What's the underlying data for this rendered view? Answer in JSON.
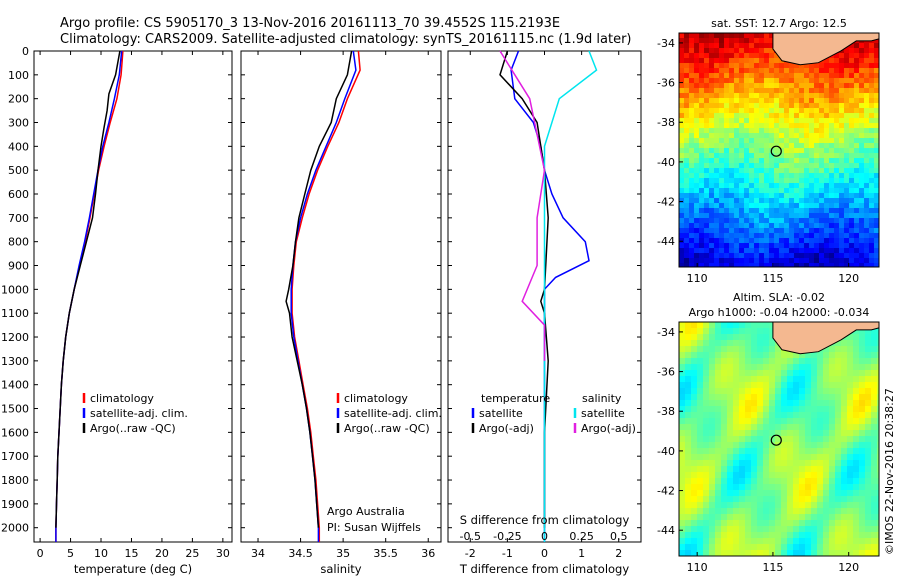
{
  "header": {
    "title_line1": "Argo profile: CS 5905170_3 13-Nov-2016 20161113_70 39.4552S 115.2193E",
    "title_line2": "Climatology: CARS2009. Satellite-adjusted climatology: synTS_20161115.nc (1.9d later)"
  },
  "credits": {
    "institution": "Argo Australia",
    "pi": "PI: Susan Wijffels",
    "stamp": "©IMOS 22-Nov-2016 20:38:27"
  },
  "colors": {
    "climatology": "#ff0000",
    "satellite": "#0000ff",
    "argo": "#000000",
    "sal_satellite": "#00e5ee",
    "sal_argo": "#e020e0",
    "land": "#f4b890"
  },
  "chart_data": [
    {
      "id": "temperature",
      "type": "line",
      "xlabel": "temperature (deg C)",
      "ylabel": "",
      "xlim": [
        -1,
        31.5
      ],
      "ylim": [
        2060,
        0
      ],
      "xticks": [
        0,
        5,
        10,
        15,
        20,
        25,
        30
      ],
      "yticks": [
        0,
        100,
        200,
        300,
        400,
        500,
        600,
        700,
        800,
        900,
        1000,
        1100,
        1200,
        1300,
        1400,
        1500,
        1600,
        1700,
        1800,
        1900,
        2000
      ],
      "legend": [
        "climatology",
        "satellite-adj. clim.",
        "Argo(..raw -QC)"
      ],
      "series": [
        {
          "name": "climatology",
          "color": "#ff0000",
          "points": [
            [
              13.6,
              0
            ],
            [
              13.3,
              100
            ],
            [
              12.6,
              200
            ],
            [
              11.5,
              300
            ],
            [
              10.5,
              400
            ],
            [
              9.6,
              500
            ],
            [
              8.9,
              600
            ],
            [
              8.2,
              700
            ],
            [
              7.4,
              800
            ],
            [
              6.5,
              900
            ],
            [
              5.6,
              1000
            ],
            [
              4.8,
              1100
            ],
            [
              4.2,
              1200
            ],
            [
              3.8,
              1300
            ],
            [
              3.5,
              1400
            ],
            [
              3.3,
              1500
            ],
            [
              3.1,
              1600
            ],
            [
              2.9,
              1700
            ],
            [
              2.8,
              1800
            ],
            [
              2.7,
              1900
            ],
            [
              2.6,
              2000
            ],
            [
              2.6,
              2060
            ]
          ]
        },
        {
          "name": "satellite-adj. clim.",
          "color": "#0000ff",
          "points": [
            [
              13.4,
              0
            ],
            [
              13.0,
              100
            ],
            [
              12.2,
              200
            ],
            [
              11.3,
              300
            ],
            [
              10.3,
              400
            ],
            [
              9.5,
              500
            ],
            [
              8.8,
              600
            ],
            [
              8.1,
              700
            ],
            [
              7.3,
              800
            ],
            [
              6.4,
              900
            ],
            [
              5.6,
              1000
            ],
            [
              4.8,
              1100
            ],
            [
              4.2,
              1200
            ],
            [
              3.8,
              1300
            ],
            [
              3.5,
              1400
            ],
            [
              3.3,
              1500
            ],
            [
              3.1,
              1600
            ],
            [
              2.9,
              1700
            ],
            [
              2.8,
              1800
            ],
            [
              2.7,
              1900
            ],
            [
              2.6,
              2000
            ],
            [
              2.6,
              2060
            ]
          ]
        },
        {
          "name": "Argo(..raw -QC)",
          "color": "#000000",
          "points": [
            [
              13.1,
              0
            ],
            [
              12.4,
              100
            ],
            [
              11.3,
              180
            ],
            [
              11.0,
              250
            ],
            [
              10.5,
              320
            ],
            [
              10.0,
              400
            ],
            [
              9.5,
              500
            ],
            [
              9.1,
              600
            ],
            [
              8.6,
              700
            ],
            [
              7.6,
              800
            ],
            [
              6.6,
              900
            ],
            [
              5.6,
              1000
            ],
            [
              4.8,
              1100
            ],
            [
              4.2,
              1200
            ],
            [
              3.8,
              1300
            ],
            [
              3.5,
              1400
            ],
            [
              3.3,
              1500
            ],
            [
              3.1,
              1600
            ],
            [
              2.9,
              1700
            ],
            [
              2.8,
              1800
            ],
            [
              2.7,
              1900
            ],
            [
              2.6,
              2000
            ]
          ]
        }
      ]
    },
    {
      "id": "salinity",
      "type": "line",
      "xlabel": "salinity",
      "ylabel": "",
      "xlim": [
        33.8,
        36.15
      ],
      "ylim": [
        2060,
        0
      ],
      "xticks": [
        34,
        34.5,
        35,
        35.5,
        36
      ],
      "legend": [
        "climatology",
        "satellite-adj. clim.",
        "Argo(..raw -QC)"
      ],
      "series": [
        {
          "name": "climatology",
          "color": "#ff0000",
          "points": [
            [
              35.18,
              0
            ],
            [
              35.2,
              80
            ],
            [
              35.05,
              200
            ],
            [
              34.95,
              300
            ],
            [
              34.82,
              400
            ],
            [
              34.7,
              500
            ],
            [
              34.6,
              600
            ],
            [
              34.52,
              700
            ],
            [
              34.45,
              800
            ],
            [
              34.42,
              900
            ],
            [
              34.4,
              1000
            ],
            [
              34.4,
              1100
            ],
            [
              34.43,
              1200
            ],
            [
              34.48,
              1300
            ],
            [
              34.53,
              1400
            ],
            [
              34.58,
              1500
            ],
            [
              34.62,
              1600
            ],
            [
              34.65,
              1700
            ],
            [
              34.68,
              1800
            ],
            [
              34.7,
              1900
            ],
            [
              34.72,
              2000
            ],
            [
              34.72,
              2060
            ]
          ]
        },
        {
          "name": "satellite-adj. clim.",
          "color": "#0000ff",
          "points": [
            [
              35.12,
              0
            ],
            [
              35.15,
              80
            ],
            [
              35.02,
              200
            ],
            [
              34.92,
              300
            ],
            [
              34.8,
              400
            ],
            [
              34.68,
              500
            ],
            [
              34.58,
              600
            ],
            [
              34.5,
              700
            ],
            [
              34.44,
              800
            ],
            [
              34.41,
              900
            ],
            [
              34.39,
              1000
            ],
            [
              34.39,
              1100
            ],
            [
              34.42,
              1200
            ],
            [
              34.47,
              1300
            ],
            [
              34.52,
              1400
            ],
            [
              34.57,
              1500
            ],
            [
              34.61,
              1600
            ],
            [
              34.64,
              1700
            ],
            [
              34.67,
              1800
            ],
            [
              34.69,
              1900
            ],
            [
              34.71,
              2000
            ],
            [
              34.71,
              2060
            ]
          ]
        },
        {
          "name": "Argo(..raw -QC)",
          "color": "#000000",
          "points": [
            [
              35.1,
              0
            ],
            [
              35.05,
              100
            ],
            [
              34.92,
              200
            ],
            [
              34.86,
              300
            ],
            [
              34.72,
              400
            ],
            [
              34.62,
              500
            ],
            [
              34.55,
              600
            ],
            [
              34.48,
              700
            ],
            [
              34.44,
              800
            ],
            [
              34.41,
              900
            ],
            [
              34.36,
              1000
            ],
            [
              34.33,
              1050
            ],
            [
              34.37,
              1100
            ],
            [
              34.4,
              1200
            ],
            [
              34.46,
              1300
            ],
            [
              34.52,
              1400
            ],
            [
              34.57,
              1500
            ],
            [
              34.61,
              1600
            ],
            [
              34.64,
              1700
            ],
            [
              34.67,
              1800
            ],
            [
              34.69,
              1900
            ],
            [
              34.71,
              2000
            ]
          ]
        }
      ]
    },
    {
      "id": "difference",
      "type": "line",
      "xlabel": "T difference from climatology",
      "xlabel_top": "S difference from climatology",
      "ylabel": "",
      "xlim": [
        -2.6,
        2.6
      ],
      "ylim": [
        2060,
        0
      ],
      "xticks": [
        -2,
        -1,
        0,
        1,
        2
      ],
      "xticks_top": [
        "-0.5",
        "-0.25",
        "0",
        "0.25",
        "0.5"
      ],
      "legend_temperature_title": "temperature",
      "legend_salinity_title": "salinity",
      "legend": [
        "satellite",
        "Argo(-adj)",
        "satellite",
        "Argo(-adj)"
      ],
      "series": [
        {
          "name": "satellite",
          "group": "temperature",
          "color": "#0000ff",
          "points": [
            [
              -0.7,
              0
            ],
            [
              -0.9,
              80
            ],
            [
              -0.8,
              200
            ],
            [
              -0.3,
              300
            ],
            [
              -0.1,
              400
            ],
            [
              0.0,
              500
            ],
            [
              0.2,
              600
            ],
            [
              0.5,
              700
            ],
            [
              1.1,
              800
            ],
            [
              1.2,
              880
            ],
            [
              0.3,
              950
            ],
            [
              0.0,
              1000
            ],
            [
              0.0,
              1100
            ],
            [
              0.0,
              1300
            ],
            [
              0.0,
              2060
            ]
          ]
        },
        {
          "name": "Argo(-adj)",
          "group": "temperature",
          "color": "#000000",
          "points": [
            [
              -1.0,
              0
            ],
            [
              -1.2,
              100
            ],
            [
              -0.6,
              200
            ],
            [
              -0.2,
              300
            ],
            [
              -0.1,
              400
            ],
            [
              0.0,
              500
            ],
            [
              0.1,
              700
            ],
            [
              0.0,
              1000
            ],
            [
              -0.1,
              1050
            ],
            [
              0.0,
              1100
            ],
            [
              0.1,
              1300
            ],
            [
              0.0,
              1600
            ],
            [
              0.0,
              2000
            ]
          ]
        },
        {
          "name": "satellite",
          "group": "salinity",
          "color": "#00e5ee",
          "points": [
            [
              0.3,
              0
            ],
            [
              0.35,
              80
            ],
            [
              0.1,
              200
            ],
            [
              0.05,
              300
            ],
            [
              0.0,
              400
            ],
            [
              0.0,
              600
            ],
            [
              0.0,
              1000
            ],
            [
              0.0,
              2060
            ]
          ]
        },
        {
          "name": "Argo(-adj)",
          "group": "salinity",
          "color": "#e020e0",
          "points": [
            [
              -0.3,
              0
            ],
            [
              -0.2,
              100
            ],
            [
              -0.1,
              200
            ],
            [
              -0.05,
              350
            ],
            [
              0.0,
              500
            ],
            [
              -0.05,
              700
            ],
            [
              -0.05,
              900
            ],
            [
              -0.15,
              1050
            ],
            [
              0.0,
              1150
            ],
            [
              0.0,
              1300
            ]
          ]
        }
      ]
    },
    {
      "id": "sst-map",
      "type": "heatmap",
      "title_line1": "sat. SST: 12.7  Argo: 12.5",
      "xlim": [
        108.8,
        122
      ],
      "ylim": [
        -45.3,
        -33.5
      ],
      "xticks": [
        110,
        115,
        120
      ],
      "yticks": [
        -34,
        -36,
        -38,
        -40,
        -42,
        -44
      ],
      "marker": {
        "lon": 115.22,
        "lat": -39.46
      }
    },
    {
      "id": "sla-map",
      "type": "heatmap",
      "title_line1": "Altim. SLA: -0.02",
      "title_line2": "Argo h1000: -0.04 h2000: -0.034",
      "xlim": [
        108.8,
        122
      ],
      "ylim": [
        -45.3,
        -33.5
      ],
      "xticks": [
        110,
        115,
        120
      ],
      "yticks": [
        -34,
        -36,
        -38,
        -40,
        -42,
        -44
      ],
      "marker": {
        "lon": 115.22,
        "lat": -39.46
      }
    }
  ]
}
